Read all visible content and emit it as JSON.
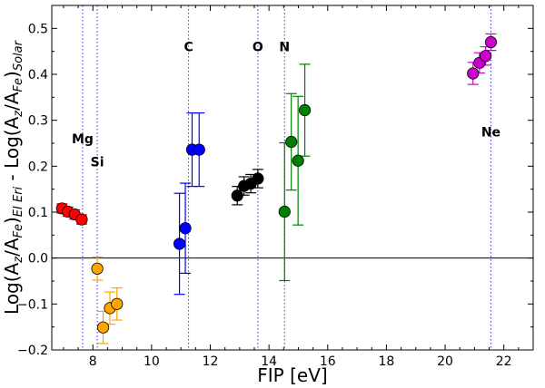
{
  "chart_data": {
    "type": "scatter",
    "title": "",
    "xlabel": "FIP [eV]",
    "ylabel": "Log(A_z/A_Fe)_EI Eri - Log(A_z/A_Fe)_Solar",
    "xlim": [
      6.6,
      23.0
    ],
    "ylim": [
      -0.2,
      0.55
    ],
    "x_ticks": [
      {
        "value": 8,
        "label": "8"
      },
      {
        "value": 10,
        "label": "10"
      },
      {
        "value": 12,
        "label": "12"
      },
      {
        "value": 14,
        "label": "14"
      },
      {
        "value": 16,
        "label": "16"
      },
      {
        "value": 18,
        "label": "18"
      },
      {
        "value": 20,
        "label": "20"
      },
      {
        "value": 22,
        "label": "22"
      }
    ],
    "y_ticks": [
      {
        "value": -0.2,
        "label": "−0.2"
      },
      {
        "value": -0.1,
        "label": "−0.1"
      },
      {
        "value": 0.0,
        "label": "0.0"
      },
      {
        "value": 0.1,
        "label": "0.1"
      },
      {
        "value": 0.2,
        "label": "0.2"
      },
      {
        "value": 0.3,
        "label": "0.3"
      },
      {
        "value": 0.4,
        "label": "0.4"
      },
      {
        "value": 0.5,
        "label": "0.5"
      }
    ],
    "reference_line_y": 0.0,
    "element_lines": [
      {
        "label": "Mg",
        "x": 7.65,
        "label_y": 0.26
      },
      {
        "label": "Si",
        "x": 8.15,
        "label_y": 0.21
      },
      {
        "label": "C",
        "x": 11.26,
        "label_y": 0.46
      },
      {
        "label": "O",
        "x": 13.62,
        "label_y": 0.46
      },
      {
        "label": "N",
        "x": 14.53,
        "label_y": 0.46
      },
      {
        "label": "Ne",
        "x": 21.56,
        "label_y": 0.275
      }
    ],
    "series": [
      {
        "name": "Mg",
        "color": "#ff0000",
        "err_color": "#cc0000",
        "points": [
          {
            "x": 6.95,
            "y": 0.108,
            "err": 0.01
          },
          {
            "x": 7.15,
            "y": 0.101,
            "err": 0.01
          },
          {
            "x": 7.38,
            "y": 0.095,
            "err": 0.01
          },
          {
            "x": 7.62,
            "y": 0.084,
            "err": 0.01
          }
        ]
      },
      {
        "name": "Si",
        "color": "#ffa500",
        "err_color": "#ffa500",
        "points": [
          {
            "x": 8.15,
            "y": -0.023,
            "err": 0.025
          },
          {
            "x": 8.35,
            "y": -0.151,
            "err": 0.035
          },
          {
            "x": 8.58,
            "y": -0.109,
            "err": 0.035
          },
          {
            "x": 8.82,
            "y": -0.1,
            "err": 0.035
          }
        ]
      },
      {
        "name": "C",
        "color": "#0000ff",
        "err_color": "#0000ff",
        "points": [
          {
            "x": 10.95,
            "y": 0.031,
            "err": 0.11
          },
          {
            "x": 11.15,
            "y": 0.065,
            "err": 0.098
          },
          {
            "x": 11.38,
            "y": 0.236,
            "err": 0.08
          },
          {
            "x": 11.62,
            "y": 0.236,
            "err": 0.08
          }
        ]
      },
      {
        "name": "O",
        "color": "#000000",
        "err_color": "#000000",
        "points": [
          {
            "x": 12.92,
            "y": 0.136,
            "err": 0.02
          },
          {
            "x": 13.15,
            "y": 0.157,
            "err": 0.02
          },
          {
            "x": 13.38,
            "y": 0.162,
            "err": 0.02
          },
          {
            "x": 13.62,
            "y": 0.173,
            "err": 0.02
          }
        ]
      },
      {
        "name": "N",
        "color": "#008000",
        "err_color": "#008000",
        "points": [
          {
            "x": 14.53,
            "y": 0.101,
            "err": 0.15
          },
          {
            "x": 14.76,
            "y": 0.253,
            "err": 0.105
          },
          {
            "x": 14.99,
            "y": 0.212,
            "err": 0.14
          },
          {
            "x": 15.22,
            "y": 0.322,
            "err": 0.1
          }
        ]
      },
      {
        "name": "Ne",
        "color": "#cc00cc",
        "err_color": "#cc00cc",
        "points": [
          {
            "x": 20.95,
            "y": 0.402,
            "err": 0.024
          },
          {
            "x": 21.17,
            "y": 0.425,
            "err": 0.022
          },
          {
            "x": 21.38,
            "y": 0.44,
            "err": 0.02
          },
          {
            "x": 21.56,
            "y": 0.47,
            "err": 0.018
          }
        ]
      }
    ]
  }
}
